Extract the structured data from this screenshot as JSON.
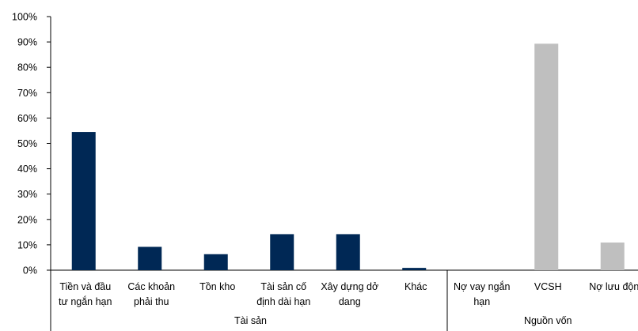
{
  "chart_data": {
    "type": "bar",
    "title": "",
    "xlabel": "",
    "ylabel": "",
    "ylim": [
      0,
      100
    ],
    "y_ticks": [
      "0%",
      "10%",
      "20%",
      "30%",
      "40%",
      "50%",
      "60%",
      "70%",
      "80%",
      "90%",
      "100%"
    ],
    "grid": false,
    "legend": "none",
    "categories": [
      [
        "Tiền và đầu",
        "tư ngắn hạn"
      ],
      [
        "Các khoản",
        "phải thu"
      ],
      [
        "Tồn kho"
      ],
      [
        "Tài sản cố",
        "định dài hạn"
      ],
      [
        "Xây dựng dở",
        "dang"
      ],
      [
        "Khác"
      ],
      [
        "Nợ vay ngắn",
        "hạn"
      ],
      [
        "VCSH"
      ],
      [
        "Nợ lưu độn"
      ]
    ],
    "values": [
      54.5,
      9.2,
      6.3,
      14.2,
      14.2,
      0.9,
      0,
      89.3,
      10.9
    ],
    "bar_colors": [
      "#002855",
      "#002855",
      "#002855",
      "#002855",
      "#002855",
      "#002855",
      "#bfbfbf",
      "#bfbfbf",
      "#bfbfbf"
    ],
    "groups": [
      {
        "label": "Tài sản",
        "count": 6
      },
      {
        "label": "Nguồn vốn",
        "count": 3
      }
    ]
  }
}
